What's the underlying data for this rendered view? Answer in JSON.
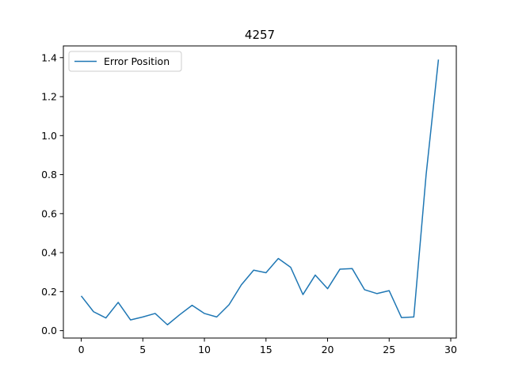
{
  "chart_data": {
    "type": "line",
    "title": "4257",
    "xlabel": "",
    "ylabel": "",
    "xlim": [
      -1.45,
      30.45
    ],
    "ylim": [
      -0.038,
      1.46
    ],
    "xticks": [
      0,
      5,
      10,
      15,
      20,
      25,
      30
    ],
    "yticks": [
      0.0,
      0.2,
      0.4,
      0.6,
      0.8,
      1.0,
      1.2,
      1.4
    ],
    "ytick_labels": [
      "0.0",
      "0.2",
      "0.4",
      "0.6",
      "0.8",
      "1.0",
      "1.2",
      "1.4"
    ],
    "grid": false,
    "legend_position": "upper-left",
    "series": [
      {
        "name": "Error Position",
        "color": "#1f77b4",
        "x": [
          0,
          1,
          2,
          3,
          4,
          5,
          6,
          7,
          8,
          9,
          10,
          11,
          12,
          13,
          14,
          15,
          16,
          17,
          18,
          19,
          20,
          21,
          22,
          23,
          24,
          25,
          26,
          27,
          28,
          29
        ],
        "y": [
          0.178,
          0.097,
          0.065,
          0.145,
          0.055,
          0.07,
          0.088,
          0.03,
          0.082,
          0.13,
          0.088,
          0.07,
          0.133,
          0.235,
          0.31,
          0.297,
          0.37,
          0.325,
          0.185,
          0.285,
          0.215,
          0.315,
          0.318,
          0.21,
          0.19,
          0.205,
          0.067,
          0.07,
          0.8,
          1.39
        ]
      }
    ]
  }
}
